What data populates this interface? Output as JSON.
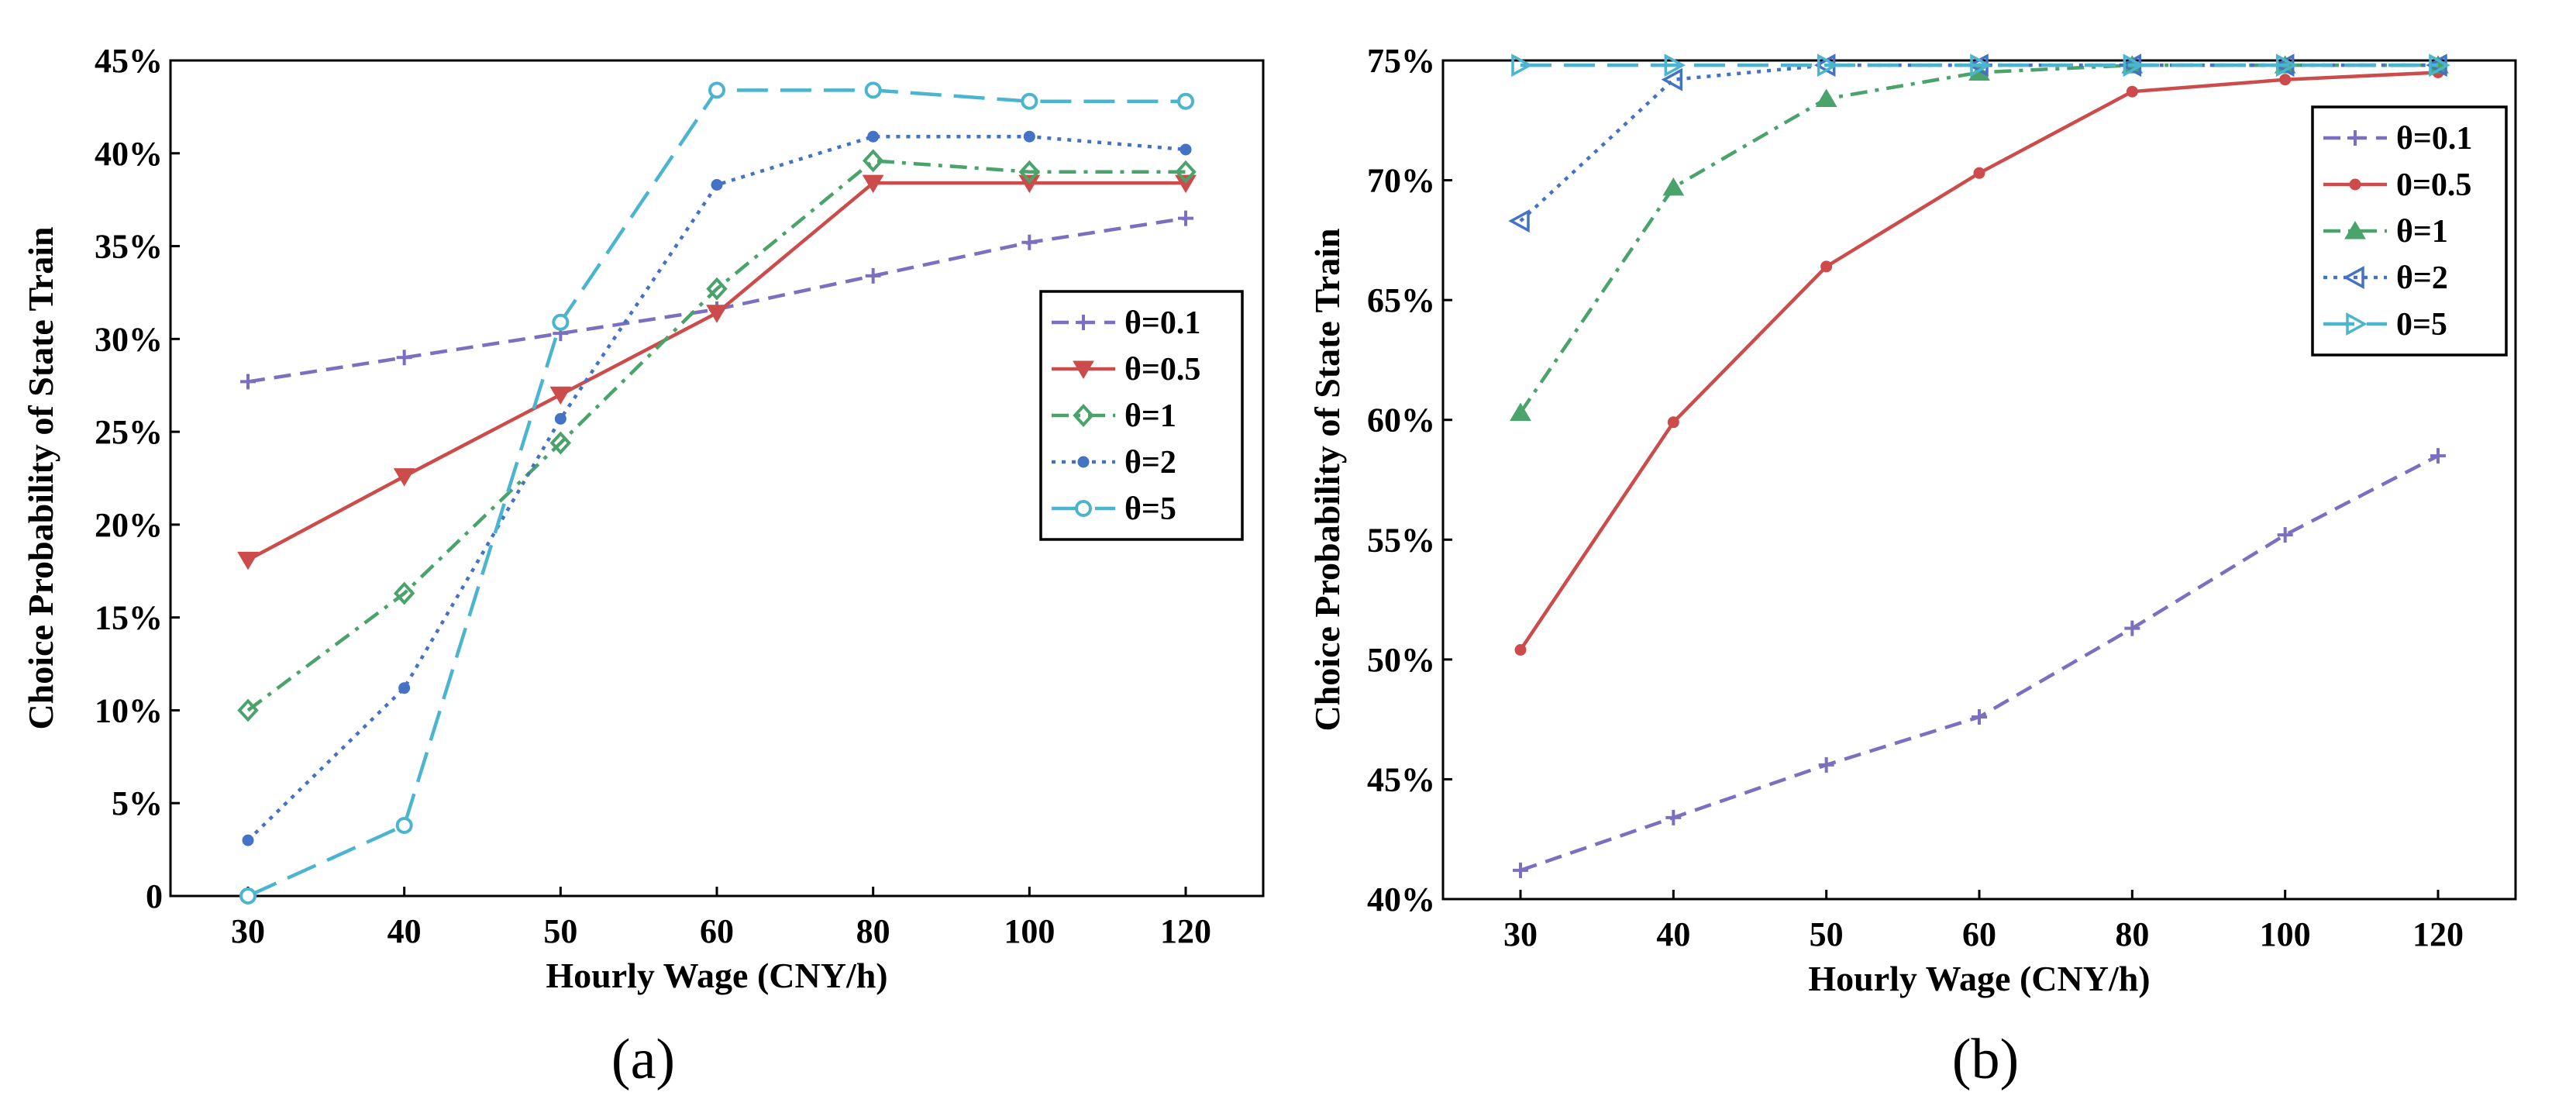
{
  "chart_data": [
    {
      "panel_label": "(a)",
      "type": "line",
      "categories": [
        "30",
        "40",
        "50",
        "60",
        "80",
        "100",
        "120"
      ],
      "xlabel": "Hourly Wage (CNY/h)",
      "ylabel": "Choice Probability of State Train",
      "ylim": [
        0,
        45
      ],
      "yticks": [
        "0",
        "5%",
        "10%",
        "15%",
        "20%",
        "25%",
        "30%",
        "35%",
        "40%",
        "45%"
      ],
      "legend_position": "center-right",
      "grid": false,
      "series": [
        {
          "name": "θ=0.1",
          "color": "#7b6fc0",
          "dash": "dashed",
          "marker": "plus",
          "values": [
            27.7,
            29.0,
            30.3,
            31.6,
            33.4,
            35.2,
            36.5
          ]
        },
        {
          "name": "θ=0.5",
          "color": "#cc4b4b",
          "dash": "solid",
          "marker": "triangle-down",
          "values": [
            18.1,
            22.6,
            27.0,
            31.4,
            38.4,
            38.4,
            38.4
          ]
        },
        {
          "name": "θ=1",
          "color": "#4aa36b",
          "dash": "dashdot",
          "marker": "diamond",
          "values": [
            10.0,
            16.3,
            24.4,
            32.7,
            39.6,
            39.0,
            39.0
          ]
        },
        {
          "name": "θ=2",
          "color": "#4472c4",
          "dash": "dotted",
          "marker": "dot",
          "values": [
            3.0,
            11.2,
            25.7,
            38.3,
            40.9,
            40.9,
            40.2
          ]
        },
        {
          "name": "θ=5",
          "color": "#4bb5cf",
          "dash": "longdash",
          "marker": "open-circle",
          "values": [
            0.0,
            3.8,
            30.9,
            43.4,
            43.4,
            42.8,
            42.8
          ]
        }
      ]
    },
    {
      "panel_label": "(b)",
      "type": "line",
      "categories": [
        "30",
        "40",
        "50",
        "60",
        "80",
        "100",
        "120"
      ],
      "xlabel": "Hourly Wage (CNY/h)",
      "ylabel": "Choice Probability of State Train",
      "ylim": [
        40,
        75
      ],
      "yticks": [
        "40%",
        "45%",
        "50%",
        "55%",
        "60%",
        "65%",
        "70%",
        "75%"
      ],
      "legend_position": "top-right",
      "grid": false,
      "series": [
        {
          "name": "θ=0.1",
          "color": "#7b6fc0",
          "dash": "dashed",
          "marker": "plus",
          "values": [
            41.2,
            43.4,
            45.6,
            47.6,
            51.3,
            55.2,
            58.5
          ]
        },
        {
          "name": "0=0.5",
          "color": "#cc4b4b",
          "dash": "solid",
          "marker": "dot",
          "values": [
            50.4,
            59.9,
            66.4,
            70.3,
            73.7,
            74.2,
            74.5
          ]
        },
        {
          "name": "θ=1",
          "color": "#4aa36b",
          "dash": "dashdot",
          "marker": "triangle-up",
          "values": [
            60.3,
            69.7,
            73.4,
            74.5,
            74.8,
            74.8,
            74.8
          ]
        },
        {
          "name": "θ=2",
          "color": "#4472c4",
          "dash": "dotted",
          "marker": "triangle-left",
          "values": [
            68.3,
            74.2,
            74.8,
            74.8,
            74.8,
            74.8,
            74.8
          ]
        },
        {
          "name": "0=5",
          "color": "#4bb5cf",
          "dash": "longdash",
          "marker": "triangle-right",
          "values": [
            74.8,
            74.8,
            74.8,
            74.8,
            74.8,
            74.8,
            74.8
          ]
        }
      ]
    }
  ]
}
